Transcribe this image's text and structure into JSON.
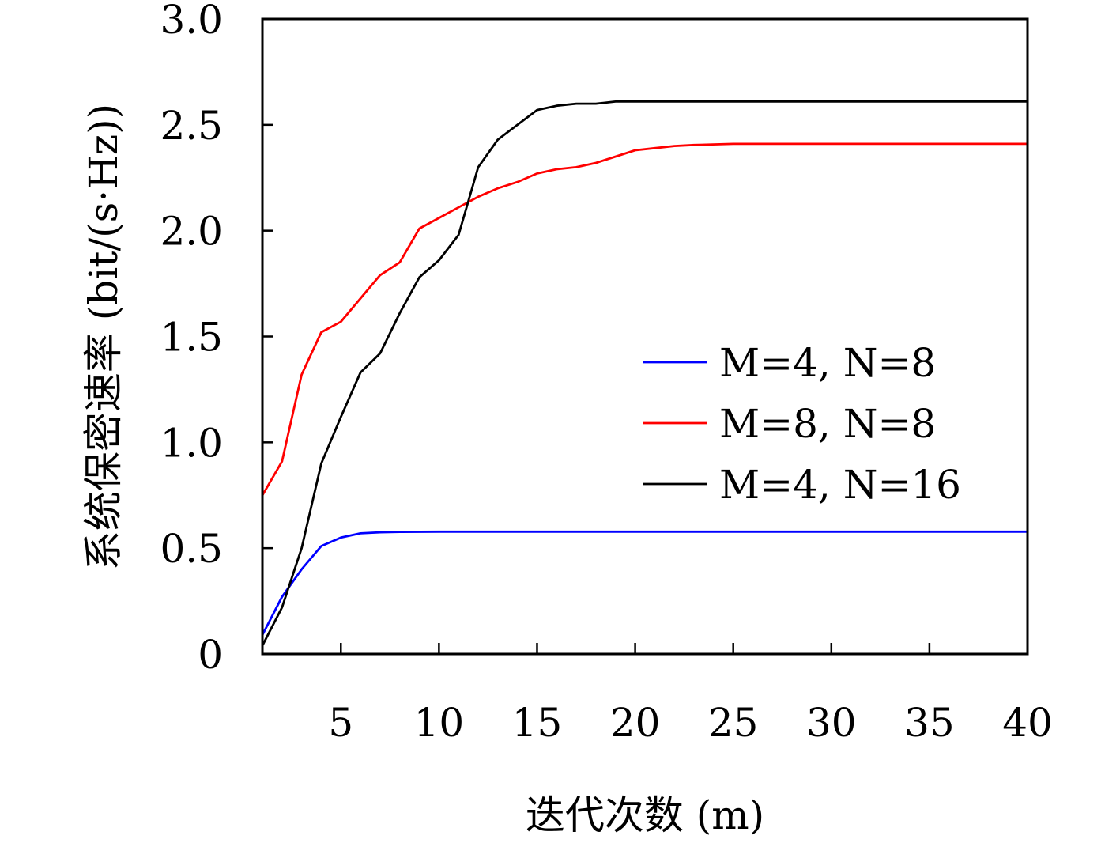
{
  "chart_data": {
    "type": "line",
    "title": "",
    "xlabel": "迭代次数 (m)",
    "ylabel": "系统保密速率 (bit/(s·Hz))",
    "xlim": [
      1,
      40
    ],
    "ylim": [
      0,
      3.0
    ],
    "xticks": [
      5,
      10,
      15,
      20,
      25,
      30,
      35,
      40
    ],
    "xtick_labels": [
      "5",
      "10",
      "15",
      "20",
      "25",
      "30",
      "35",
      "40"
    ],
    "yticks": [
      0,
      0.5,
      1.0,
      1.5,
      2.0,
      2.5,
      3.0
    ],
    "ytick_labels": [
      "0",
      "0.5",
      "1.0",
      "1.5",
      "2.0",
      "2.5",
      "3.0"
    ],
    "grid": false,
    "legend_position": "center-right",
    "series": [
      {
        "name": "M=4, N=8",
        "color": "#0000ff",
        "x": [
          1,
          2,
          3,
          4,
          5,
          6,
          7,
          8,
          10,
          15,
          20,
          25,
          30,
          35,
          40
        ],
        "y": [
          0.09,
          0.27,
          0.4,
          0.51,
          0.55,
          0.57,
          0.575,
          0.577,
          0.578,
          0.578,
          0.578,
          0.578,
          0.578,
          0.578,
          0.578
        ]
      },
      {
        "name": "M=8, N=8",
        "color": "#ff0000",
        "x": [
          1,
          2,
          3,
          4,
          5,
          6,
          7,
          8,
          9,
          10,
          11,
          12,
          13,
          14,
          15,
          16,
          17,
          18,
          19,
          20,
          21,
          22,
          23,
          25,
          30,
          35,
          40
        ],
        "y": [
          0.75,
          0.91,
          1.32,
          1.52,
          1.57,
          1.68,
          1.79,
          1.85,
          2.01,
          2.06,
          2.11,
          2.16,
          2.2,
          2.23,
          2.27,
          2.29,
          2.3,
          2.32,
          2.35,
          2.38,
          2.39,
          2.4,
          2.405,
          2.41,
          2.41,
          2.41,
          2.41
        ]
      },
      {
        "name": "M=4, N=16",
        "color": "#000000",
        "x": [
          1,
          2,
          3,
          4,
          5,
          6,
          7,
          8,
          9,
          10,
          11,
          12,
          13,
          14,
          15,
          16,
          17,
          18,
          19,
          20,
          25,
          30,
          35,
          40
        ],
        "y": [
          0.04,
          0.22,
          0.5,
          0.9,
          1.12,
          1.33,
          1.42,
          1.61,
          1.78,
          1.86,
          1.98,
          2.3,
          2.43,
          2.5,
          2.57,
          2.59,
          2.6,
          2.6,
          2.61,
          2.61,
          2.61,
          2.61,
          2.61,
          2.61
        ]
      }
    ]
  }
}
